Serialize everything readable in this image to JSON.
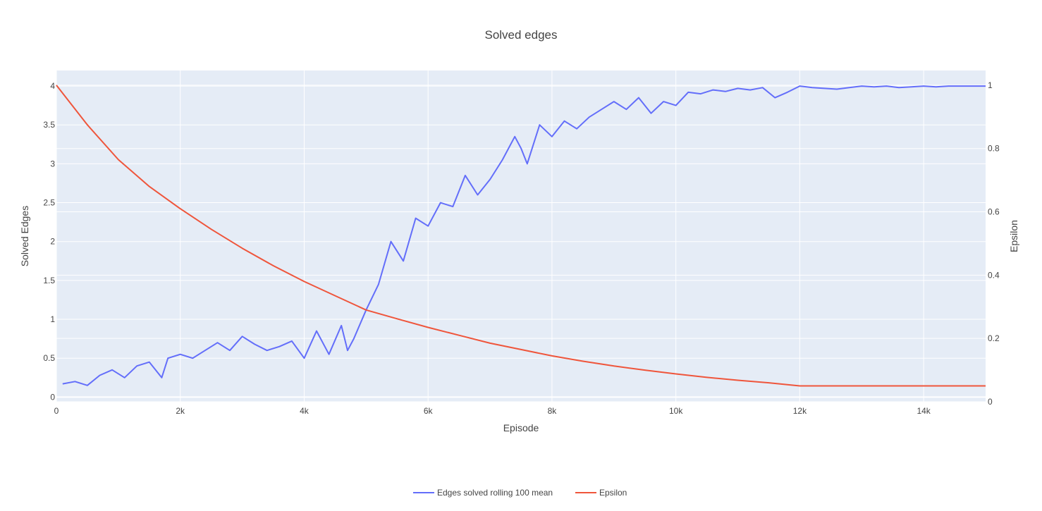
{
  "chart_data": {
    "type": "line",
    "title": "Solved edges",
    "xlabel": "Episode",
    "ylabel": "Solved Edges",
    "y2label": "Epsilon",
    "xlim": [
      0,
      15000
    ],
    "ylim": [
      -0.06,
      4.2
    ],
    "y2lim": [
      0,
      1.0466
    ],
    "x_ticks": [
      0,
      2000,
      4000,
      6000,
      8000,
      10000,
      12000,
      14000
    ],
    "x_tick_labels": [
      "0",
      "2k",
      "4k",
      "6k",
      "8k",
      "10k",
      "12k",
      "14k"
    ],
    "y_ticks": [
      0,
      0.5,
      1,
      1.5,
      2,
      2.5,
      3,
      3.5,
      4
    ],
    "y_tick_labels": [
      "0",
      "0.5",
      "1",
      "1.5",
      "2",
      "2.5",
      "3",
      "3.5",
      "4"
    ],
    "y2_ticks": [
      0,
      0.2,
      0.4,
      0.6,
      0.8,
      1
    ],
    "y2_tick_labels": [
      "0",
      "0.2",
      "0.4",
      "0.6",
      "0.8",
      "1"
    ],
    "grid": true,
    "legend_position": "bottom-center",
    "series": [
      {
        "name": "Edges solved rolling 100 mean",
        "axis": "y",
        "color": "#636efa",
        "x": [
          100,
          300,
          500,
          700,
          900,
          1100,
          1300,
          1500,
          1700,
          1800,
          2000,
          2200,
          2400,
          2600,
          2800,
          3000,
          3200,
          3400,
          3600,
          3800,
          4000,
          4200,
          4400,
          4600,
          4700,
          4800,
          5000,
          5200,
          5400,
          5600,
          5800,
          6000,
          6200,
          6400,
          6600,
          6800,
          7000,
          7200,
          7400,
          7500,
          7600,
          7800,
          8000,
          8200,
          8400,
          8600,
          8800,
          9000,
          9200,
          9400,
          9600,
          9800,
          10000,
          10200,
          10400,
          10600,
          10800,
          11000,
          11200,
          11400,
          11600,
          11800,
          12000,
          12200,
          12400,
          12600,
          12800,
          13000,
          13200,
          13400,
          13600,
          13800,
          14000,
          14200,
          14400,
          14600,
          14800,
          15000
        ],
        "y": [
          0.17,
          0.2,
          0.15,
          0.28,
          0.35,
          0.25,
          0.4,
          0.45,
          0.25,
          0.5,
          0.55,
          0.5,
          0.6,
          0.7,
          0.6,
          0.78,
          0.68,
          0.6,
          0.65,
          0.72,
          0.5,
          0.85,
          0.55,
          0.92,
          0.6,
          0.75,
          1.12,
          1.45,
          2.0,
          1.75,
          2.3,
          2.2,
          2.5,
          2.45,
          2.85,
          2.6,
          2.8,
          3.05,
          3.35,
          3.2,
          3.0,
          3.5,
          3.35,
          3.55,
          3.45,
          3.6,
          3.7,
          3.8,
          3.7,
          3.85,
          3.65,
          3.8,
          3.75,
          3.92,
          3.9,
          3.95,
          3.93,
          3.97,
          3.95,
          3.98,
          3.85,
          3.92,
          4.0,
          3.98,
          3.97,
          3.96,
          3.98,
          4.0,
          3.99,
          4.0,
          3.98,
          3.99,
          4.0,
          3.99,
          4.0,
          4.0,
          4.0,
          4.0
        ]
      },
      {
        "name": "Epsilon",
        "axis": "y2",
        "color": "#ef553b",
        "x": [
          0,
          500,
          1000,
          1500,
          2000,
          2500,
          3000,
          3500,
          4000,
          4500,
          5000,
          5500,
          6000,
          6500,
          7000,
          7500,
          8000,
          8500,
          9000,
          9500,
          10000,
          10500,
          11000,
          11500,
          12000,
          12500,
          13000,
          13500,
          14000,
          14500,
          15000
        ],
        "y": [
          1.0,
          0.875,
          0.765,
          0.68,
          0.61,
          0.545,
          0.485,
          0.43,
          0.38,
          0.335,
          0.29,
          0.262,
          0.235,
          0.21,
          0.185,
          0.165,
          0.145,
          0.128,
          0.113,
          0.1,
          0.088,
          0.077,
          0.068,
          0.06,
          0.05,
          0.05,
          0.05,
          0.05,
          0.05,
          0.05,
          0.05
        ]
      }
    ]
  }
}
